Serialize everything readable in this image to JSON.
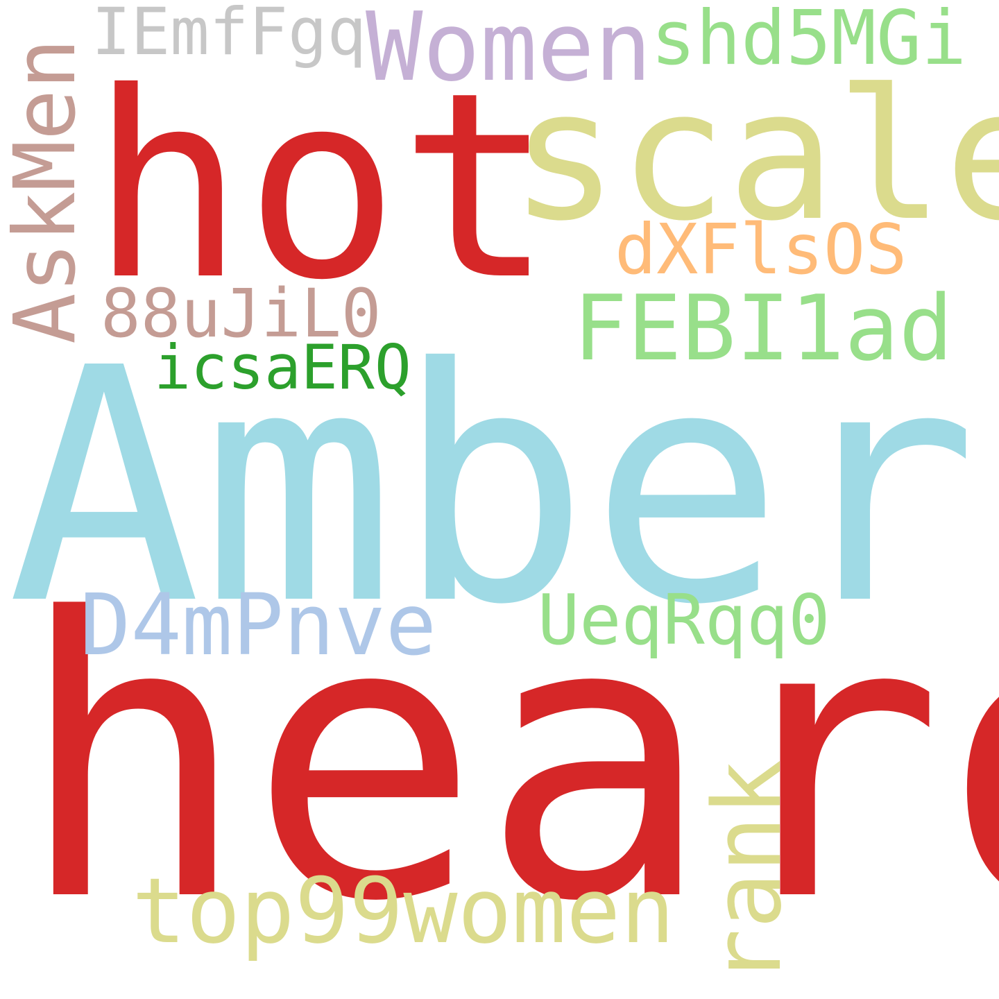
{
  "words": [
    {
      "key": "amber",
      "text": "Amber",
      "color": "#9fdae5"
    },
    {
      "key": "heard",
      "text": "heard",
      "color": "#d62728"
    },
    {
      "key": "hot",
      "text": "hot",
      "color": "#d62728"
    },
    {
      "key": "scale",
      "text": "scale",
      "color": "#dbdb8d"
    },
    {
      "key": "women",
      "text": "Women",
      "color": "#c5b0d5"
    },
    {
      "key": "shd5mgi",
      "text": "shd5MGi",
      "color": "#98df8a"
    },
    {
      "key": "iemffgq",
      "text": "IEmfFgq",
      "color": "#c7c7c7"
    },
    {
      "key": "askmen",
      "text": "AskMen",
      "color": "#c49c94"
    },
    {
      "key": "dxfls0s",
      "text": "dXFlsOS",
      "color": "#ffbb78"
    },
    {
      "key": "febi1ad",
      "text": "FEBI1ad",
      "color": "#98df8a"
    },
    {
      "key": "88ujil0",
      "text": "88uJiL0",
      "color": "#c49c94"
    },
    {
      "key": "icsaerq",
      "text": "icsaERQ",
      "color": "#2ca02c"
    },
    {
      "key": "d4mpnve",
      "text": "D4mPnve",
      "color": "#aec7e8"
    },
    {
      "key": "ueqrqq0",
      "text": "UeqRqq0",
      "color": "#98df8a"
    },
    {
      "key": "top99women",
      "text": "top99women",
      "color": "#dbdb8d"
    },
    {
      "key": "rank",
      "text": "rank",
      "color": "#dbdb8d"
    }
  ]
}
